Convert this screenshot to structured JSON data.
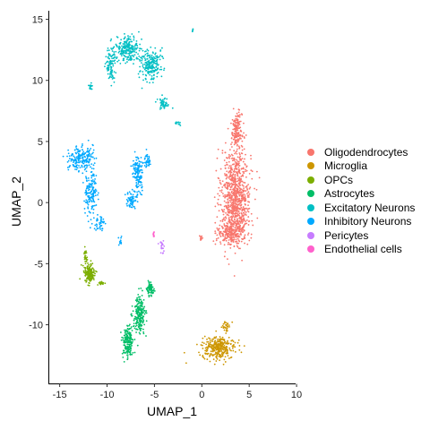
{
  "chart_data": {
    "type": "scatter",
    "xlabel": "UMAP_1",
    "ylabel": "UMAP_2",
    "xlim": [
      -16.1,
      9.9
    ],
    "ylim": [
      -14.8,
      15.7
    ],
    "xticks": [
      -15,
      -10,
      -5,
      0,
      5,
      10
    ],
    "yticks": [
      -10,
      -5,
      0,
      5,
      10,
      15
    ],
    "xtick_labels": [
      "-15",
      "-10",
      "-5",
      "0",
      "5",
      "10"
    ],
    "ytick_labels": [
      "-10",
      "-5",
      "0",
      "5",
      "10",
      "15"
    ],
    "grid": false,
    "legend_position": "right",
    "series": [
      {
        "name": "Oligodendrocytes",
        "color": "#F8766D",
        "clusters": [
          {
            "center": [
              3.6,
              0.5
            ],
            "spread": [
              1.4,
              3.6
            ],
            "n": 900
          },
          {
            "center": [
              3.7,
              5.8
            ],
            "spread": [
              0.5,
              1.4
            ],
            "n": 160
          },
          {
            "center": [
              3.0,
              -2.4
            ],
            "spread": [
              1.3,
              0.8
            ],
            "n": 200
          },
          {
            "center": [
              -0.1,
              -2.9
            ],
            "spread": [
              0.12,
              0.2
            ],
            "n": 12
          }
        ]
      },
      {
        "name": "Microglia",
        "color": "#CD9600",
        "clusters": [
          {
            "center": [
              1.8,
              -11.9
            ],
            "spread": [
              1.6,
              0.8
            ],
            "n": 320
          },
          {
            "center": [
              2.6,
              -10.1
            ],
            "spread": [
              0.35,
              0.4
            ],
            "n": 30
          }
        ]
      },
      {
        "name": "OPCs",
        "color": "#7CAE00",
        "clusters": [
          {
            "center": [
              -11.9,
              -5.8
            ],
            "spread": [
              0.55,
              0.8
            ],
            "n": 170
          },
          {
            "center": [
              -12.3,
              -4.3
            ],
            "spread": [
              0.15,
              0.6
            ],
            "n": 25
          },
          {
            "center": [
              -10.6,
              -6.6
            ],
            "spread": [
              0.35,
              0.15
            ],
            "n": 20
          }
        ]
      },
      {
        "name": "Astrocytes",
        "color": "#00BE67",
        "clusters": [
          {
            "center": [
              -7.8,
              -11.5
            ],
            "spread": [
              0.5,
              1.2
            ],
            "n": 180
          },
          {
            "center": [
              -6.6,
              -9.2
            ],
            "spread": [
              0.6,
              1.4
            ],
            "n": 220
          },
          {
            "center": [
              -5.4,
              -7.1
            ],
            "spread": [
              0.35,
              0.5
            ],
            "n": 80
          }
        ]
      },
      {
        "name": "Excitatory Neurons",
        "color": "#00BFC4",
        "clusters": [
          {
            "center": [
              -7.8,
              12.6
            ],
            "spread": [
              1.1,
              0.9
            ],
            "n": 220
          },
          {
            "center": [
              -5.4,
              11.3
            ],
            "spread": [
              1.0,
              1.2
            ],
            "n": 220
          },
          {
            "center": [
              -9.6,
              11.4
            ],
            "spread": [
              0.5,
              1.3
            ],
            "n": 100
          },
          {
            "center": [
              -4.1,
              8.1
            ],
            "spread": [
              0.5,
              0.5
            ],
            "n": 50
          },
          {
            "center": [
              -2.5,
              6.5
            ],
            "spread": [
              0.3,
              0.15
            ],
            "n": 12
          },
          {
            "center": [
              -11.7,
              9.5
            ],
            "spread": [
              0.2,
              0.3
            ],
            "n": 15
          },
          {
            "center": [
              -1.0,
              14.1
            ],
            "spread": [
              0.15,
              0.2
            ],
            "n": 6
          }
        ]
      },
      {
        "name": "Inhibitory Neurons",
        "color": "#00A9FF",
        "clusters": [
          {
            "center": [
              -12.8,
              3.6
            ],
            "spread": [
              1.2,
              0.9
            ],
            "n": 200
          },
          {
            "center": [
              -11.7,
              0.9
            ],
            "spread": [
              0.6,
              1.6
            ],
            "n": 150
          },
          {
            "center": [
              -10.8,
              -1.8
            ],
            "spread": [
              0.6,
              0.5
            ],
            "n": 40
          },
          {
            "center": [
              -8.6,
              -3.2
            ],
            "spread": [
              0.2,
              0.3
            ],
            "n": 12
          },
          {
            "center": [
              -6.7,
              2.4
            ],
            "spread": [
              0.5,
              1.3
            ],
            "n": 140
          },
          {
            "center": [
              -7.4,
              0.2
            ],
            "spread": [
              0.5,
              0.6
            ],
            "n": 70
          },
          {
            "center": [
              -5.8,
              3.5
            ],
            "spread": [
              0.3,
              0.6
            ],
            "n": 40
          }
        ]
      },
      {
        "name": "Pericytes",
        "color": "#C77CFF",
        "clusters": [
          {
            "center": [
              -4.2,
              -3.6
            ],
            "spread": [
              0.25,
              0.5
            ],
            "n": 22
          }
        ]
      },
      {
        "name": "Endothelial cells",
        "color": "#FF61CC",
        "clusters": [
          {
            "center": [
              -5.1,
              -2.6
            ],
            "spread": [
              0.1,
              0.2
            ],
            "n": 10
          }
        ]
      }
    ]
  }
}
